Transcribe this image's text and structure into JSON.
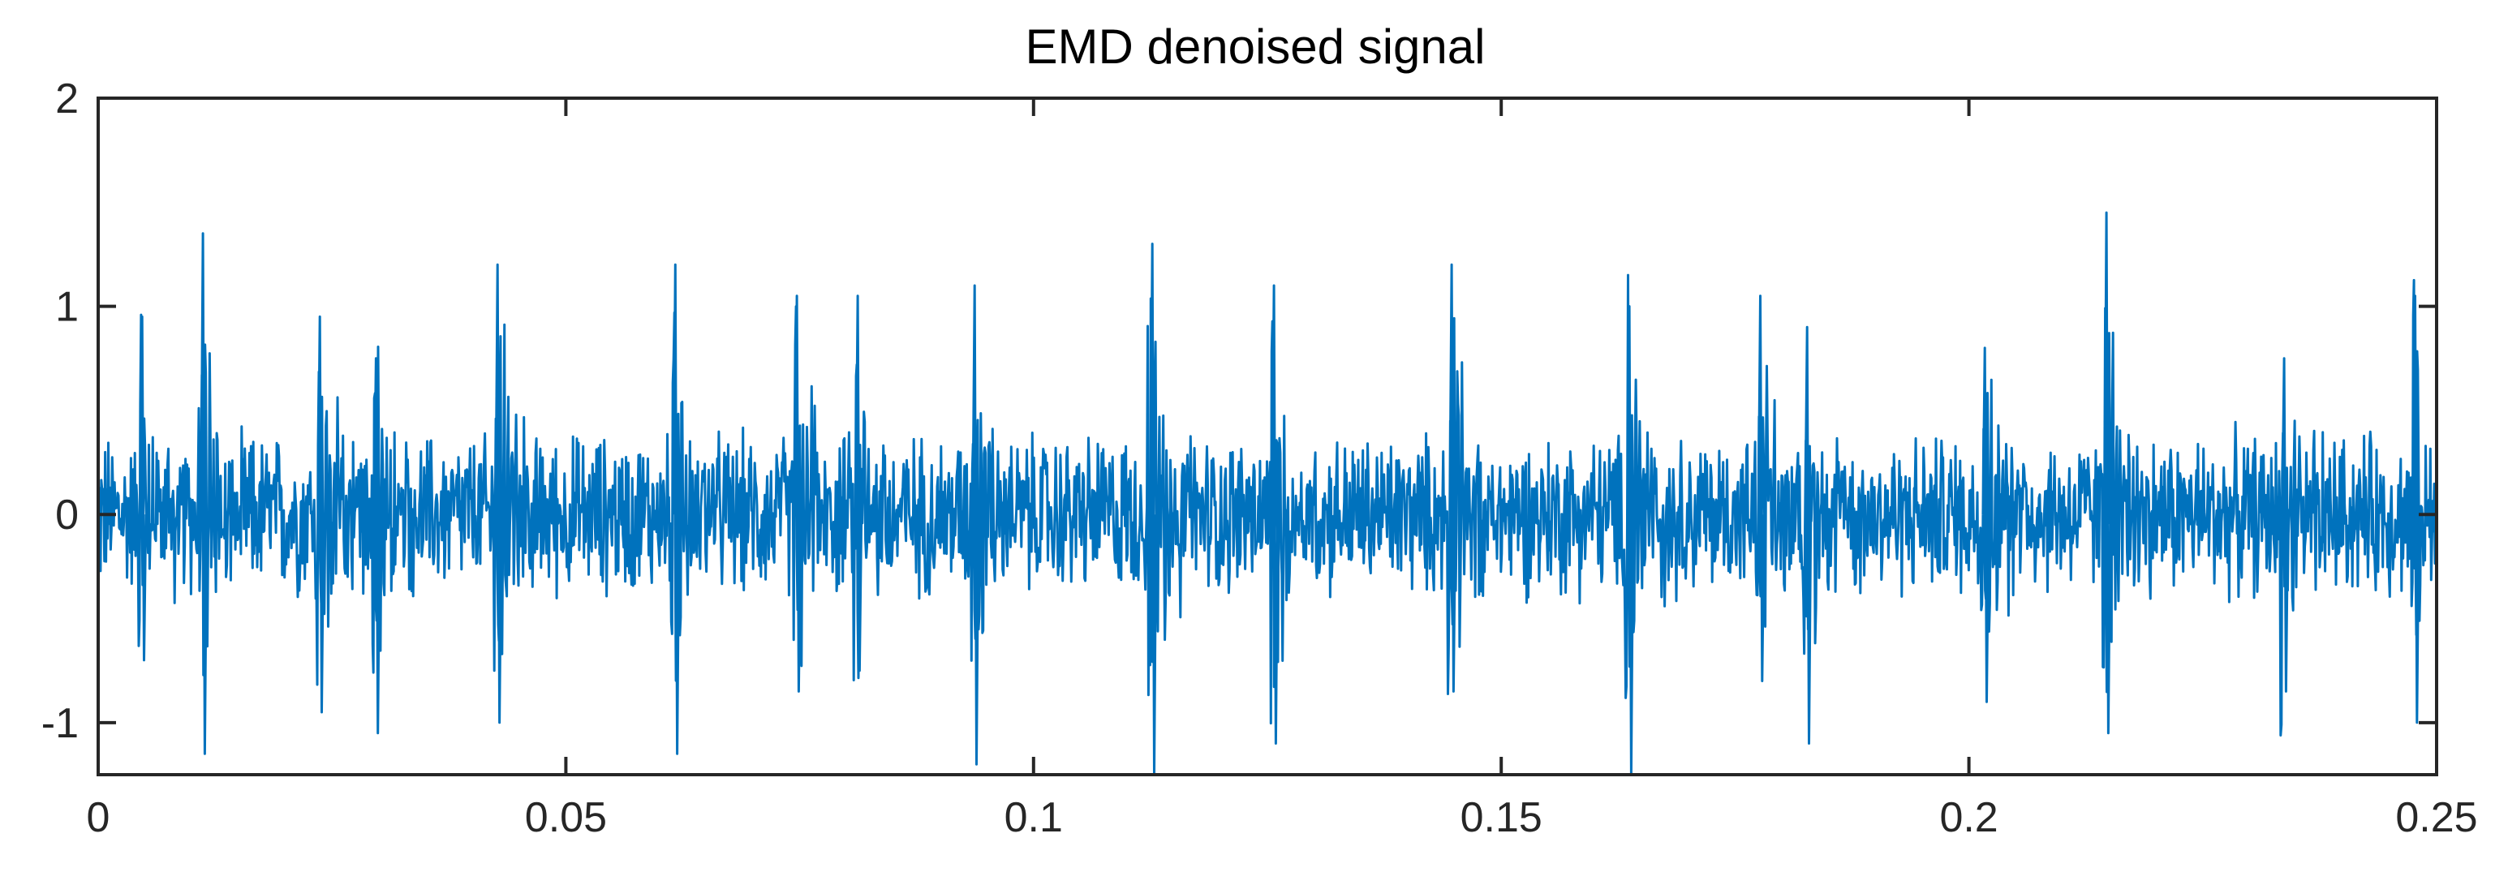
{
  "chart_data": {
    "type": "line",
    "title": "EMD denoised signal",
    "xlabel": "",
    "ylabel": "",
    "xlim": [
      0,
      0.25
    ],
    "ylim": [
      -1.25,
      2
    ],
    "x_ticks": [
      0,
      0.05,
      0.1,
      0.15,
      0.2,
      0.25
    ],
    "x_tick_labels": [
      "0",
      "0.05",
      "0.1",
      "0.15",
      "0.2",
      "0.25"
    ],
    "y_ticks": [
      -1,
      0,
      1,
      2
    ],
    "y_tick_labels": [
      "-1",
      "0",
      "1",
      "2"
    ],
    "grid": false,
    "legend": "none",
    "series": [
      {
        "color": "#0072BD",
        "x_start": 0,
        "x_end": 0.25,
        "sample_count": 3000,
        "baseline_noise_amplitude": 0.3,
        "transient_amplitude": 1.3,
        "transients": [
          {
            "x": 0.0045,
            "peak": 0.95,
            "trough": -0.7
          },
          {
            "x": 0.011,
            "peak": 1.35,
            "trough": -1.15
          },
          {
            "x": 0.0235,
            "peak": 0.95,
            "trough": -0.95
          },
          {
            "x": 0.0295,
            "peak": 0.75,
            "trough": -1.05
          },
          {
            "x": 0.0425,
            "peak": 1.2,
            "trough": -1.0
          },
          {
            "x": 0.0615,
            "peak": 1.2,
            "trough": -1.15
          },
          {
            "x": 0.0745,
            "peak": 1.05,
            "trough": -0.85
          },
          {
            "x": 0.081,
            "peak": 1.05,
            "trough": -0.75
          },
          {
            "x": 0.0935,
            "peak": 1.1,
            "trough": -1.2
          },
          {
            "x": 0.1125,
            "peak": 1.3,
            "trough": -1.25
          },
          {
            "x": 0.1255,
            "peak": 1.1,
            "trough": -1.1
          },
          {
            "x": 0.1445,
            "peak": 1.2,
            "trough": -0.85
          },
          {
            "x": 0.1635,
            "peak": 1.0,
            "trough": -1.25
          },
          {
            "x": 0.1775,
            "peak": 1.05,
            "trough": -0.8
          },
          {
            "x": 0.1825,
            "peak": 0.9,
            "trough": -1.1
          },
          {
            "x": 0.2015,
            "peak": 0.8,
            "trough": -0.9
          },
          {
            "x": 0.2145,
            "peak": 1.45,
            "trough": -1.05
          },
          {
            "x": 0.2335,
            "peak": 0.75,
            "trough": -0.85
          },
          {
            "x": 0.2475,
            "peak": 1.05,
            "trough": -1.0
          }
        ]
      }
    ]
  }
}
